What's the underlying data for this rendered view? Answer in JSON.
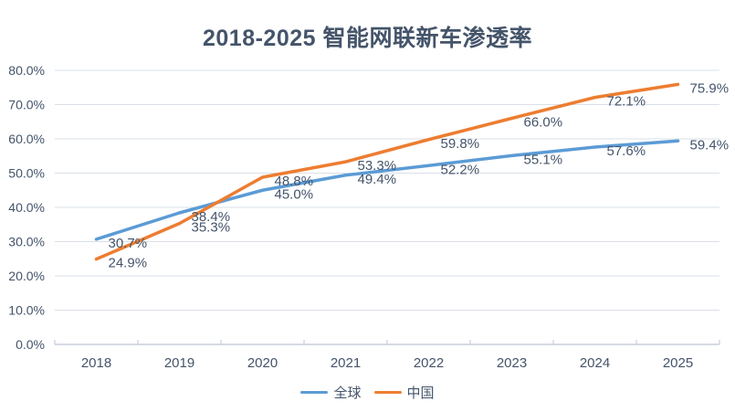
{
  "chart_data": {
    "type": "line",
    "title": "2018-2025 智能网联新车渗透率",
    "categories": [
      "2018",
      "2019",
      "2020",
      "2021",
      "2022",
      "2023",
      "2024",
      "2025"
    ],
    "series": [
      {
        "name": "全球",
        "color": "#5B9BD5",
        "values": [
          30.7,
          38.4,
          45.0,
          49.4,
          52.2,
          55.1,
          57.6,
          59.4
        ],
        "labels": [
          "30.7%",
          "38.4%",
          "45.0%",
          "49.4%",
          "52.2%",
          "55.1%",
          "57.6%",
          "59.4%"
        ]
      },
      {
        "name": "中国",
        "color": "#ED7D31",
        "values": [
          24.9,
          35.3,
          48.8,
          53.3,
          59.8,
          66.0,
          72.1,
          75.9
        ],
        "labels": [
          "24.9%",
          "35.3%",
          "48.8%",
          "53.3%",
          "59.8%",
          "66.0%",
          "72.1%",
          "75.9%"
        ]
      }
    ],
    "ylim": [
      0,
      80
    ],
    "y_tick_step": 10,
    "y_tick_labels": [
      "0.0%",
      "10.0%",
      "20.0%",
      "30.0%",
      "40.0%",
      "50.0%",
      "60.0%",
      "70.0%",
      "80.0%"
    ],
    "grid": true,
    "data_labels_visible": true,
    "legend_position": "bottom",
    "colors": {
      "text": "#44546A",
      "gridline": "#DAE0E9",
      "axis_line": "#C7CFDB",
      "background": "#FFFFFF"
    }
  }
}
